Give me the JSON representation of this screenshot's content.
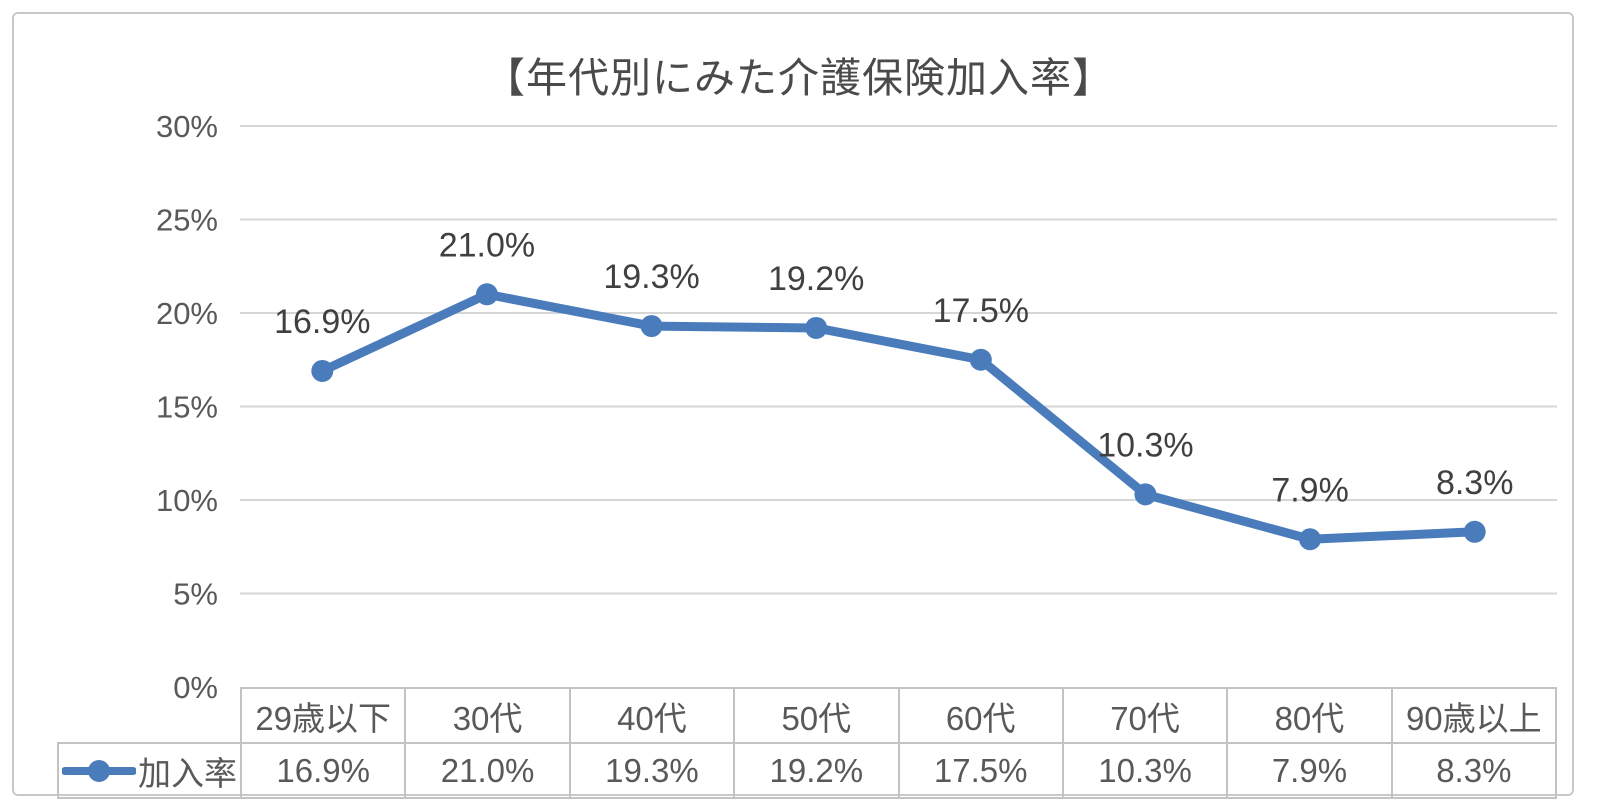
{
  "chart_data": {
    "type": "line",
    "title": "【年代別にみた介護保険加入率】",
    "categories": [
      "29歳以下",
      "30代",
      "40代",
      "50代",
      "60代",
      "70代",
      "80代",
      "90歳以上"
    ],
    "series": [
      {
        "name": "加入率",
        "values": [
          16.9,
          21.0,
          19.3,
          19.2,
          17.5,
          10.3,
          7.9,
          8.3
        ],
        "labels": [
          "16.9%",
          "21.0%",
          "19.3%",
          "19.2%",
          "17.5%",
          "10.3%",
          "7.9%",
          "8.3%"
        ],
        "color": "#4a7cbb"
      }
    ],
    "xlabel": "",
    "ylabel": "",
    "ylim": [
      0,
      30
    ],
    "y_axis": {
      "tick_labels": [
        "30%",
        "25%",
        "20%",
        "15%",
        "10%",
        "5%",
        "0%"
      ],
      "tick_values": [
        30,
        25,
        20,
        15,
        10,
        5,
        0
      ]
    },
    "gridlines": true,
    "legend_position": "data-table-left",
    "data_table_shown": true
  },
  "colors": {
    "line": "#4a7cbb",
    "marker": "#4a7cbb",
    "gridline": "#d6d6d6",
    "axis_text": "#595959",
    "data_label_text": "#404040",
    "title_text": "#4a4a4a",
    "table_border": "#c3c3c3",
    "frame_border": "#c9c9c9",
    "background": "#ffffff"
  }
}
